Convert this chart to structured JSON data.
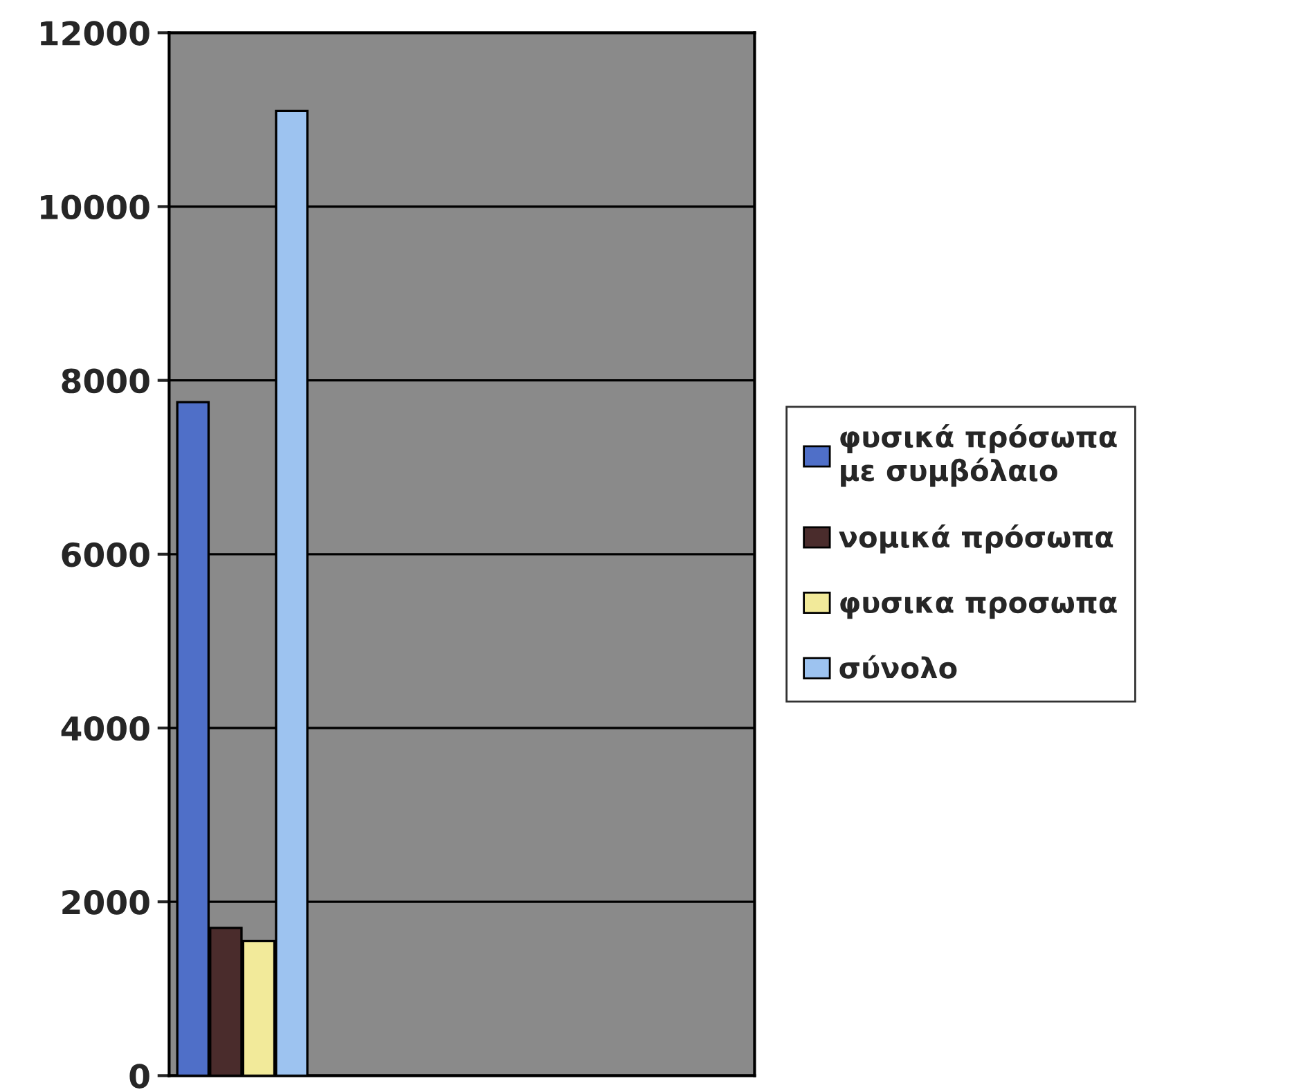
{
  "chart_data": {
    "type": "bar",
    "categories": [
      null
    ],
    "series": [
      {
        "name": "φυσικά πρόσωπα με συμβόλαιο",
        "color": "#4f6fc8",
        "values": [
          7750
        ]
      },
      {
        "name": "νομικά πρόσωπα",
        "color": "#4a2c2c",
        "values": [
          1700
        ]
      },
      {
        "name": "φυσικα προσωπα",
        "color": "#f2ea9a",
        "values": [
          1550
        ]
      },
      {
        "name": "σύνολο",
        "color": "#9dc3f0",
        "values": [
          11100
        ]
      }
    ],
    "ylim": [
      0,
      12000
    ],
    "yticks": [
      0,
      2000,
      4000,
      6000,
      8000,
      10000,
      12000
    ],
    "grid": "y",
    "legend": "right"
  }
}
